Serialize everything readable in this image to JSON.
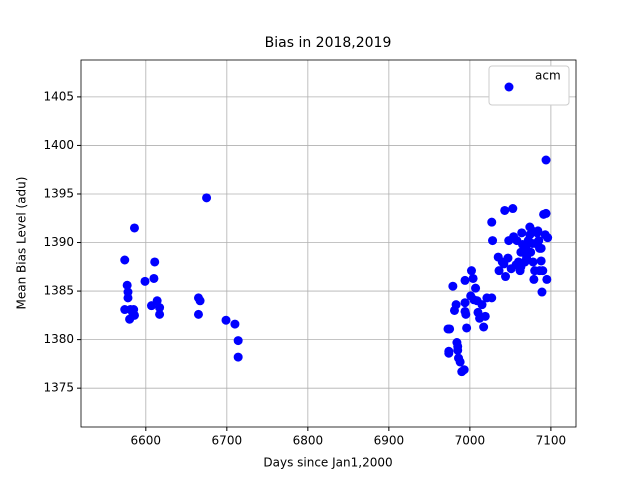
{
  "chart_data": {
    "type": "scatter",
    "title": "Bias in 2018,2019",
    "x_label": "Days since Jan1,2000",
    "y_label": "Mean Bias Level (adu)",
    "xlim": [
      6520,
      7131
    ],
    "ylim": [
      1371,
      1408.8
    ],
    "xticks": [
      6600,
      6700,
      6800,
      6900,
      7000,
      7100
    ],
    "yticks": [
      1375,
      1380,
      1385,
      1390,
      1395,
      1400,
      1405
    ],
    "grid": true,
    "legend": "upper right",
    "series": [
      {
        "name": "acm",
        "color": "#0000ff",
        "x": [
          6574,
          6574,
          6577,
          6578,
          6578,
          6580,
          6581,
          6584,
          6585,
          6586,
          6586,
          6599,
          6607,
          6610,
          6611,
          6614,
          6617,
          6617,
          6665,
          6667,
          6665,
          6675,
          6699,
          6710,
          6714,
          6714,
          6973,
          6975,
          6974,
          6974,
          6979,
          6981,
          6983,
          6984,
          6985,
          6985,
          6986,
          6988,
          6990,
          6993,
          6994,
          6994,
          6995,
          6996,
          6994,
          7002,
          7004,
          7001,
          7005,
          7007,
          7009,
          7010,
          7012,
          7015,
          7017,
          7019,
          7021,
          7027,
          7027,
          7028,
          7035,
          7036,
          7040,
          7042,
          7043,
          7044,
          7047,
          7048,
          7051,
          7053,
          7054,
          7057,
          7058,
          7060,
          7062,
          7063,
          7063,
          7064,
          7065,
          7069,
          7072,
          7074,
          7075,
          7077,
          7078,
          7079,
          7081,
          7083,
          7084,
          7085,
          7086,
          7088,
          7088,
          7089,
          7090,
          7091,
          7093,
          7094,
          7094,
          7095,
          7096,
          7086,
          7080,
          7077,
          7074,
          7070,
          7068,
          7065
        ],
        "y": [
          1388.2,
          1383.1,
          1385.6,
          1384.9,
          1384.3,
          1382.1,
          1383.1,
          1382.7,
          1383.1,
          1382.5,
          1391.5,
          1386.0,
          1383.5,
          1386.3,
          1388.0,
          1384.0,
          1383.3,
          1382.6,
          1384.3,
          1384.0,
          1382.6,
          1394.6,
          1382.0,
          1381.6,
          1379.9,
          1378.2,
          1381.1,
          1381.1,
          1378.8,
          1378.6,
          1385.5,
          1383.0,
          1383.6,
          1379.7,
          1379.3,
          1378.9,
          1378.1,
          1377.7,
          1376.7,
          1376.9,
          1383.8,
          1382.9,
          1382.6,
          1381.2,
          1386.1,
          1387.1,
          1386.3,
          1384.5,
          1384.1,
          1385.3,
          1384.0,
          1382.8,
          1382.2,
          1383.6,
          1381.3,
          1382.4,
          1384.3,
          1384.3,
          1392.1,
          1390.2,
          1388.5,
          1387.1,
          1388.0,
          1387.8,
          1393.3,
          1386.5,
          1388.4,
          1390.2,
          1387.3,
          1393.5,
          1390.6,
          1387.7,
          1390.2,
          1388.0,
          1387.1,
          1387.5,
          1389.0,
          1391.0,
          1389.8,
          1389.6,
          1390.2,
          1391.6,
          1389.0,
          1389.9,
          1388.0,
          1386.2,
          1389.9,
          1391.0,
          1391.2,
          1390.2,
          1389.4,
          1388.1,
          1389.4,
          1384.9,
          1387.1,
          1392.9,
          1390.8,
          1398.5,
          1393.0,
          1386.2,
          1390.5,
          1387.1,
          1387.1,
          1391.2,
          1390.8,
          1388.4,
          1388.0,
          1389.0
        ]
      }
    ]
  }
}
